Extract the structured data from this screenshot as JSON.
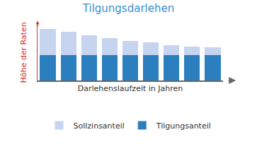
{
  "chart_data": {
    "type": "bar",
    "title": "Tilgungsdarlehen",
    "x_label": "Darlehenslaufzeit in Jahren",
    "y_label": "Höhe der Raten",
    "categories": [
      null,
      null,
      null,
      null,
      null,
      null,
      null,
      null,
      null
    ],
    "series": [
      {
        "name": "Tilgungsanteil",
        "color": "#2c7fbf",
        "values": [
          46,
          46,
          46,
          46,
          46,
          46,
          46,
          46,
          46
        ]
      },
      {
        "name": "Sollzinsanteil",
        "color": "#c6d4f0",
        "values": [
          46,
          41,
          35,
          30,
          25,
          22,
          17,
          15,
          13
        ]
      }
    ],
    "stacked": true,
    "ylim": [
      0,
      100
    ],
    "tick_labels": false,
    "grid": false,
    "legend": "bottom"
  }
}
